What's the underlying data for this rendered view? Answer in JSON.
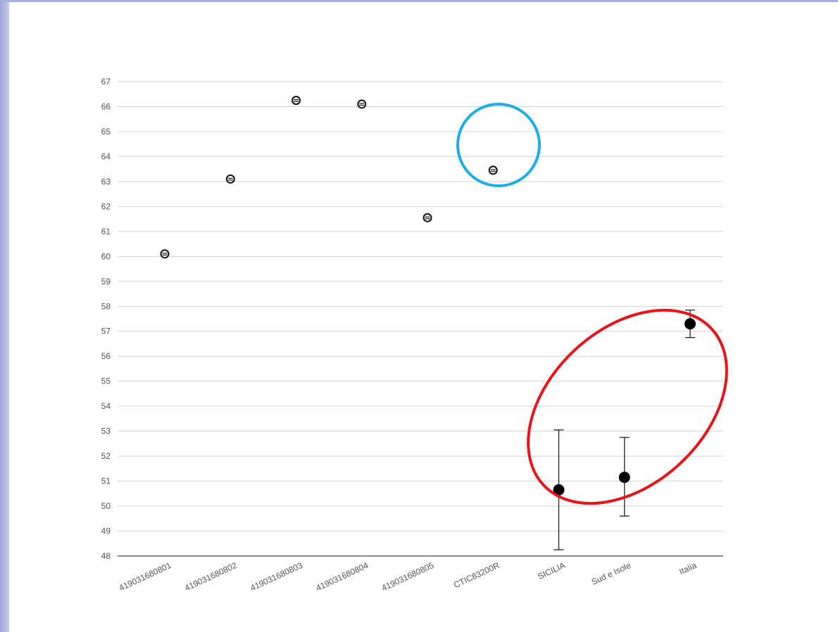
{
  "chart_data": {
    "type": "scatter",
    "title": "",
    "xlabel": "",
    "ylabel": "",
    "ylim": [
      48,
      67
    ],
    "y_ticks": [
      48,
      49,
      50,
      51,
      52,
      53,
      54,
      55,
      56,
      57,
      58,
      59,
      60,
      61,
      62,
      63,
      64,
      65,
      66,
      67
    ],
    "grid": "horizontal",
    "categories": [
      "419031680801",
      "419031680802",
      "419031680803",
      "419031680804",
      "419031680805",
      "CTIC83200R",
      "SICILIA",
      "Sud e Isole",
      "Italia"
    ],
    "values": [
      60.1,
      63.1,
      66.25,
      66.1,
      61.55,
      63.45,
      50.65,
      51.15,
      57.3
    ],
    "error_low": [
      null,
      null,
      null,
      null,
      null,
      null,
      48.25,
      49.6,
      56.75
    ],
    "error_high": [
      null,
      null,
      null,
      null,
      null,
      null,
      53.05,
      52.75,
      57.85
    ],
    "annotations": [
      {
        "shape": "circle",
        "color": "#1eaee6",
        "around": [
          "CTIC83200R"
        ]
      },
      {
        "shape": "ellipse",
        "color": "#e8141b",
        "around": [
          "SICILIA",
          "Sud e Isole",
          "Italia"
        ]
      }
    ]
  }
}
